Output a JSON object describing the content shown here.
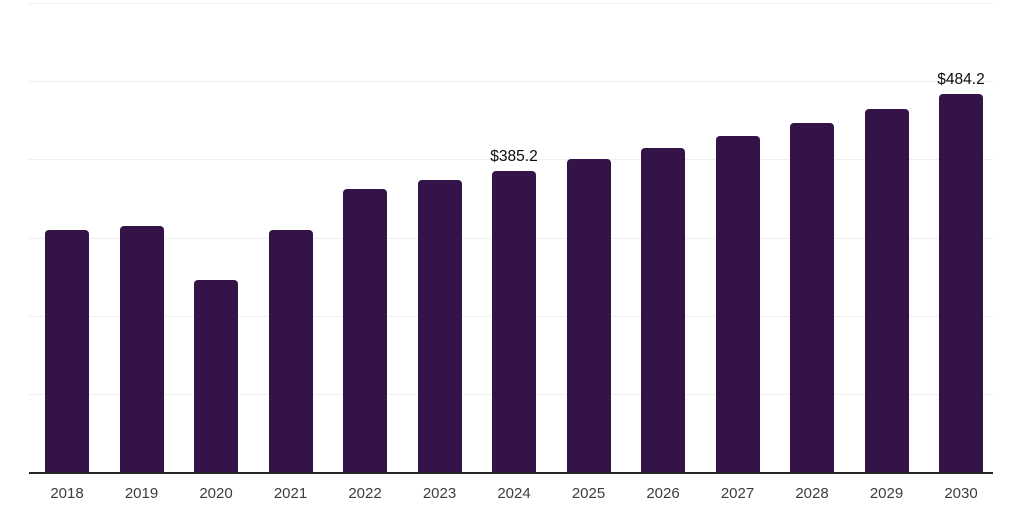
{
  "chart_data": {
    "type": "bar",
    "title": "",
    "xlabel": "",
    "ylabel": "",
    "categories": [
      "2018",
      "2019",
      "2020",
      "2021",
      "2022",
      "2023",
      "2024",
      "2025",
      "2026",
      "2027",
      "2028",
      "2029",
      "2030"
    ],
    "values": [
      310,
      315,
      246,
      310,
      362,
      374,
      385.2,
      400,
      415,
      430,
      447,
      465,
      484.2
    ],
    "labeled_points": [
      {
        "category": "2024",
        "label": "$385.2"
      },
      {
        "category": "2030",
        "label": "$484.2"
      }
    ],
    "ylim": [
      0,
      600
    ],
    "gridline_step": 100,
    "grid": "horizontal",
    "legend": "none",
    "colors": {
      "bar": "#341349",
      "axis_line": "#262626",
      "gridline": "#efefef",
      "tick_label": "#3d3d3d",
      "value_label": "#0c0c0c",
      "background": "#ffffff"
    }
  }
}
